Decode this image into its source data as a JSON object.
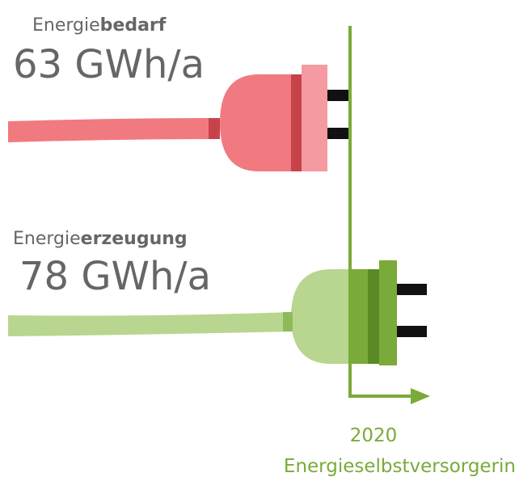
{
  "demand": {
    "label_prefix": "Energie",
    "label_bold": "bedarf",
    "value": "63 GWh/a"
  },
  "generation": {
    "label_prefix": "Energie",
    "label_bold": "erzeugung",
    "value": "78 GWh/a"
  },
  "milestone": {
    "year": "2020",
    "label": "Energieselbstversorgerin"
  }
}
